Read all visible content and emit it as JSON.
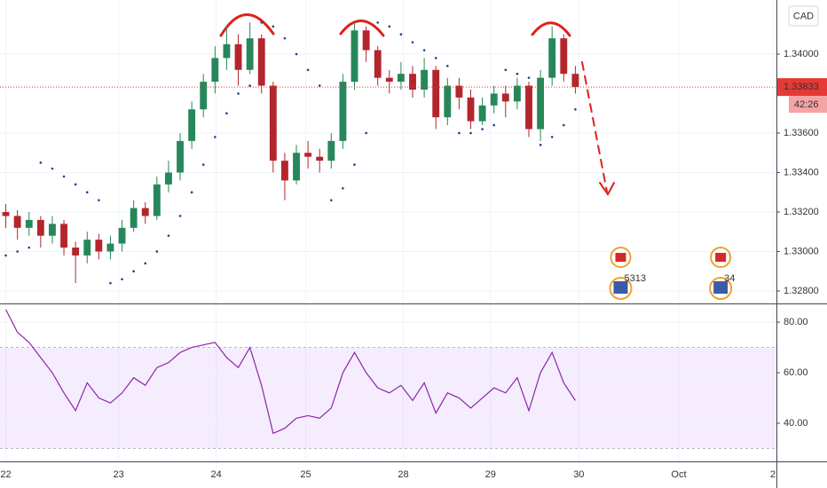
{
  "chart_data": [
    {
      "type": "candlestick",
      "currency": "CAD",
      "countdown": "42:26",
      "last_price": {
        "value": 1.33833,
        "label": "1.33833"
      },
      "colors": {
        "up": "#26875a",
        "down": "#b3262c",
        "sar": "#1f3f8f",
        "last": "#e53935"
      },
      "x": [
        0,
        1,
        2,
        3,
        4,
        5,
        6,
        7,
        8,
        9,
        10,
        11,
        12,
        13,
        14,
        15,
        16,
        17,
        18,
        19,
        20,
        21,
        22,
        23,
        24,
        25,
        26,
        27,
        28,
        29,
        30,
        31,
        32,
        33,
        34,
        35,
        36,
        37,
        38,
        39,
        40,
        41,
        42,
        43,
        44,
        45,
        46,
        47,
        48,
        49
      ],
      "open": [
        1.332,
        1.3318,
        1.3312,
        1.3316,
        1.3308,
        1.3314,
        1.3302,
        1.3298,
        1.3306,
        1.33,
        1.3304,
        1.3312,
        1.3322,
        1.3318,
        1.3334,
        1.334,
        1.3356,
        1.3372,
        1.3386,
        1.3398,
        1.3405,
        1.3392,
        1.3408,
        1.3384,
        1.3346,
        1.3336,
        1.335,
        1.3348,
        1.3346,
        1.3356,
        1.3386,
        1.3412,
        1.3402,
        1.3388,
        1.3386,
        1.339,
        1.3382,
        1.3392,
        1.3368,
        1.3384,
        1.3378,
        1.3366,
        1.3374,
        1.338,
        1.3376,
        1.3384,
        1.3362,
        1.3388,
        1.3408,
        1.339
      ],
      "high": [
        1.3324,
        1.3321,
        1.332,
        1.3318,
        1.3318,
        1.3316,
        1.3305,
        1.331,
        1.3309,
        1.3308,
        1.3316,
        1.3326,
        1.3325,
        1.3338,
        1.3346,
        1.336,
        1.3376,
        1.339,
        1.3404,
        1.3414,
        1.341,
        1.3416,
        1.341,
        1.3386,
        1.335,
        1.3354,
        1.3356,
        1.3352,
        1.336,
        1.339,
        1.3416,
        1.3414,
        1.3404,
        1.3392,
        1.3396,
        1.3394,
        1.3398,
        1.3394,
        1.3388,
        1.3388,
        1.3382,
        1.3378,
        1.3384,
        1.3384,
        1.3388,
        1.3386,
        1.3392,
        1.3414,
        1.341,
        1.3394
      ],
      "low": [
        1.3312,
        1.3306,
        1.3308,
        1.3302,
        1.3304,
        1.3298,
        1.3284,
        1.3294,
        1.3296,
        1.3296,
        1.33,
        1.331,
        1.3314,
        1.3316,
        1.333,
        1.3336,
        1.3352,
        1.3368,
        1.338,
        1.3392,
        1.3384,
        1.339,
        1.338,
        1.334,
        1.3326,
        1.3334,
        1.3342,
        1.334,
        1.3342,
        1.3352,
        1.3382,
        1.3396,
        1.3384,
        1.338,
        1.3382,
        1.3378,
        1.3378,
        1.3362,
        1.3364,
        1.3372,
        1.3362,
        1.3364,
        1.337,
        1.3368,
        1.3372,
        1.3358,
        1.3356,
        1.3384,
        1.3386,
        1.338
      ],
      "close": [
        1.3318,
        1.3312,
        1.3316,
        1.3308,
        1.3314,
        1.3302,
        1.3298,
        1.3306,
        1.33,
        1.3304,
        1.3312,
        1.3322,
        1.3318,
        1.3334,
        1.334,
        1.3356,
        1.3372,
        1.3386,
        1.3398,
        1.3405,
        1.3392,
        1.3408,
        1.3384,
        1.3346,
        1.3336,
        1.335,
        1.3348,
        1.3346,
        1.3356,
        1.3386,
        1.3412,
        1.3402,
        1.3388,
        1.3386,
        1.339,
        1.3382,
        1.3392,
        1.3368,
        1.3384,
        1.3378,
        1.3366,
        1.3374,
        1.338,
        1.3376,
        1.3384,
        1.3362,
        1.3388,
        1.3408,
        1.339,
        1.33833
      ],
      "sar": [
        1.3298,
        1.33,
        1.3302,
        1.3345,
        1.3342,
        1.3338,
        1.3334,
        1.333,
        1.3326,
        1.3284,
        1.3286,
        1.329,
        1.3294,
        1.33,
        1.3308,
        1.3318,
        1.333,
        1.3344,
        1.3358,
        1.337,
        1.338,
        1.3384,
        1.3416,
        1.3414,
        1.3408,
        1.34,
        1.3392,
        1.3384,
        1.3326,
        1.3332,
        1.3344,
        1.336,
        1.3416,
        1.3414,
        1.341,
        1.3406,
        1.3402,
        1.3398,
        1.3394,
        1.336,
        1.336,
        1.3362,
        1.3364,
        1.3392,
        1.339,
        1.3388,
        1.3354,
        1.3358,
        1.3364,
        1.3372
      ],
      "xlim": [
        -0.5,
        66.3
      ],
      "xticks": [
        {
          "value": 0,
          "label": "22"
        },
        {
          "value": 9.7,
          "label": "23"
        },
        {
          "value": 18.1,
          "label": "24"
        },
        {
          "value": 25.8,
          "label": "25"
        },
        {
          "value": 34.2,
          "label": "28"
        },
        {
          "value": 41.7,
          "label": "29"
        },
        {
          "value": 49.3,
          "label": "30"
        },
        {
          "value": 57.9,
          "label": "Oct"
        },
        {
          "value": 66,
          "label": "2"
        }
      ],
      "ylim": [
        1.32737,
        1.34274
      ],
      "yticks": [
        {
          "value": 1.328,
          "label": "1.32800"
        },
        {
          "value": 1.33,
          "label": "1.33000"
        },
        {
          "value": 1.332,
          "label": "1.33200"
        },
        {
          "value": 1.334,
          "label": "1.33400"
        },
        {
          "value": 1.336,
          "label": "1.33600"
        },
        {
          "value": 1.34,
          "label": "1.34000"
        }
      ],
      "events": [
        {
          "x": 52.9,
          "label": "5313"
        },
        {
          "x": 61.5,
          "label": "34"
        }
      ],
      "grid": true
    },
    {
      "type": "line",
      "color": "#8e24aa",
      "band_color": "#9c4de8",
      "values": [
        85,
        76,
        72,
        66,
        60,
        52,
        45,
        56,
        50,
        48,
        52,
        58,
        55,
        62,
        64,
        68,
        70,
        71,
        72,
        66,
        62,
        70,
        55,
        36,
        38,
        42,
        43,
        42,
        46,
        60,
        68,
        60,
        54,
        52,
        55,
        49,
        56,
        44,
        52,
        50,
        46,
        50,
        54,
        52,
        58,
        45,
        60,
        68,
        56,
        49
      ],
      "ylim": [
        24.9,
        86.7
      ],
      "yticks": [
        {
          "value": 40,
          "label": "40.00"
        },
        {
          "value": 60,
          "label": "60.00"
        },
        {
          "value": 80,
          "label": "80.00"
        }
      ],
      "bands": [
        30,
        70
      ]
    }
  ]
}
